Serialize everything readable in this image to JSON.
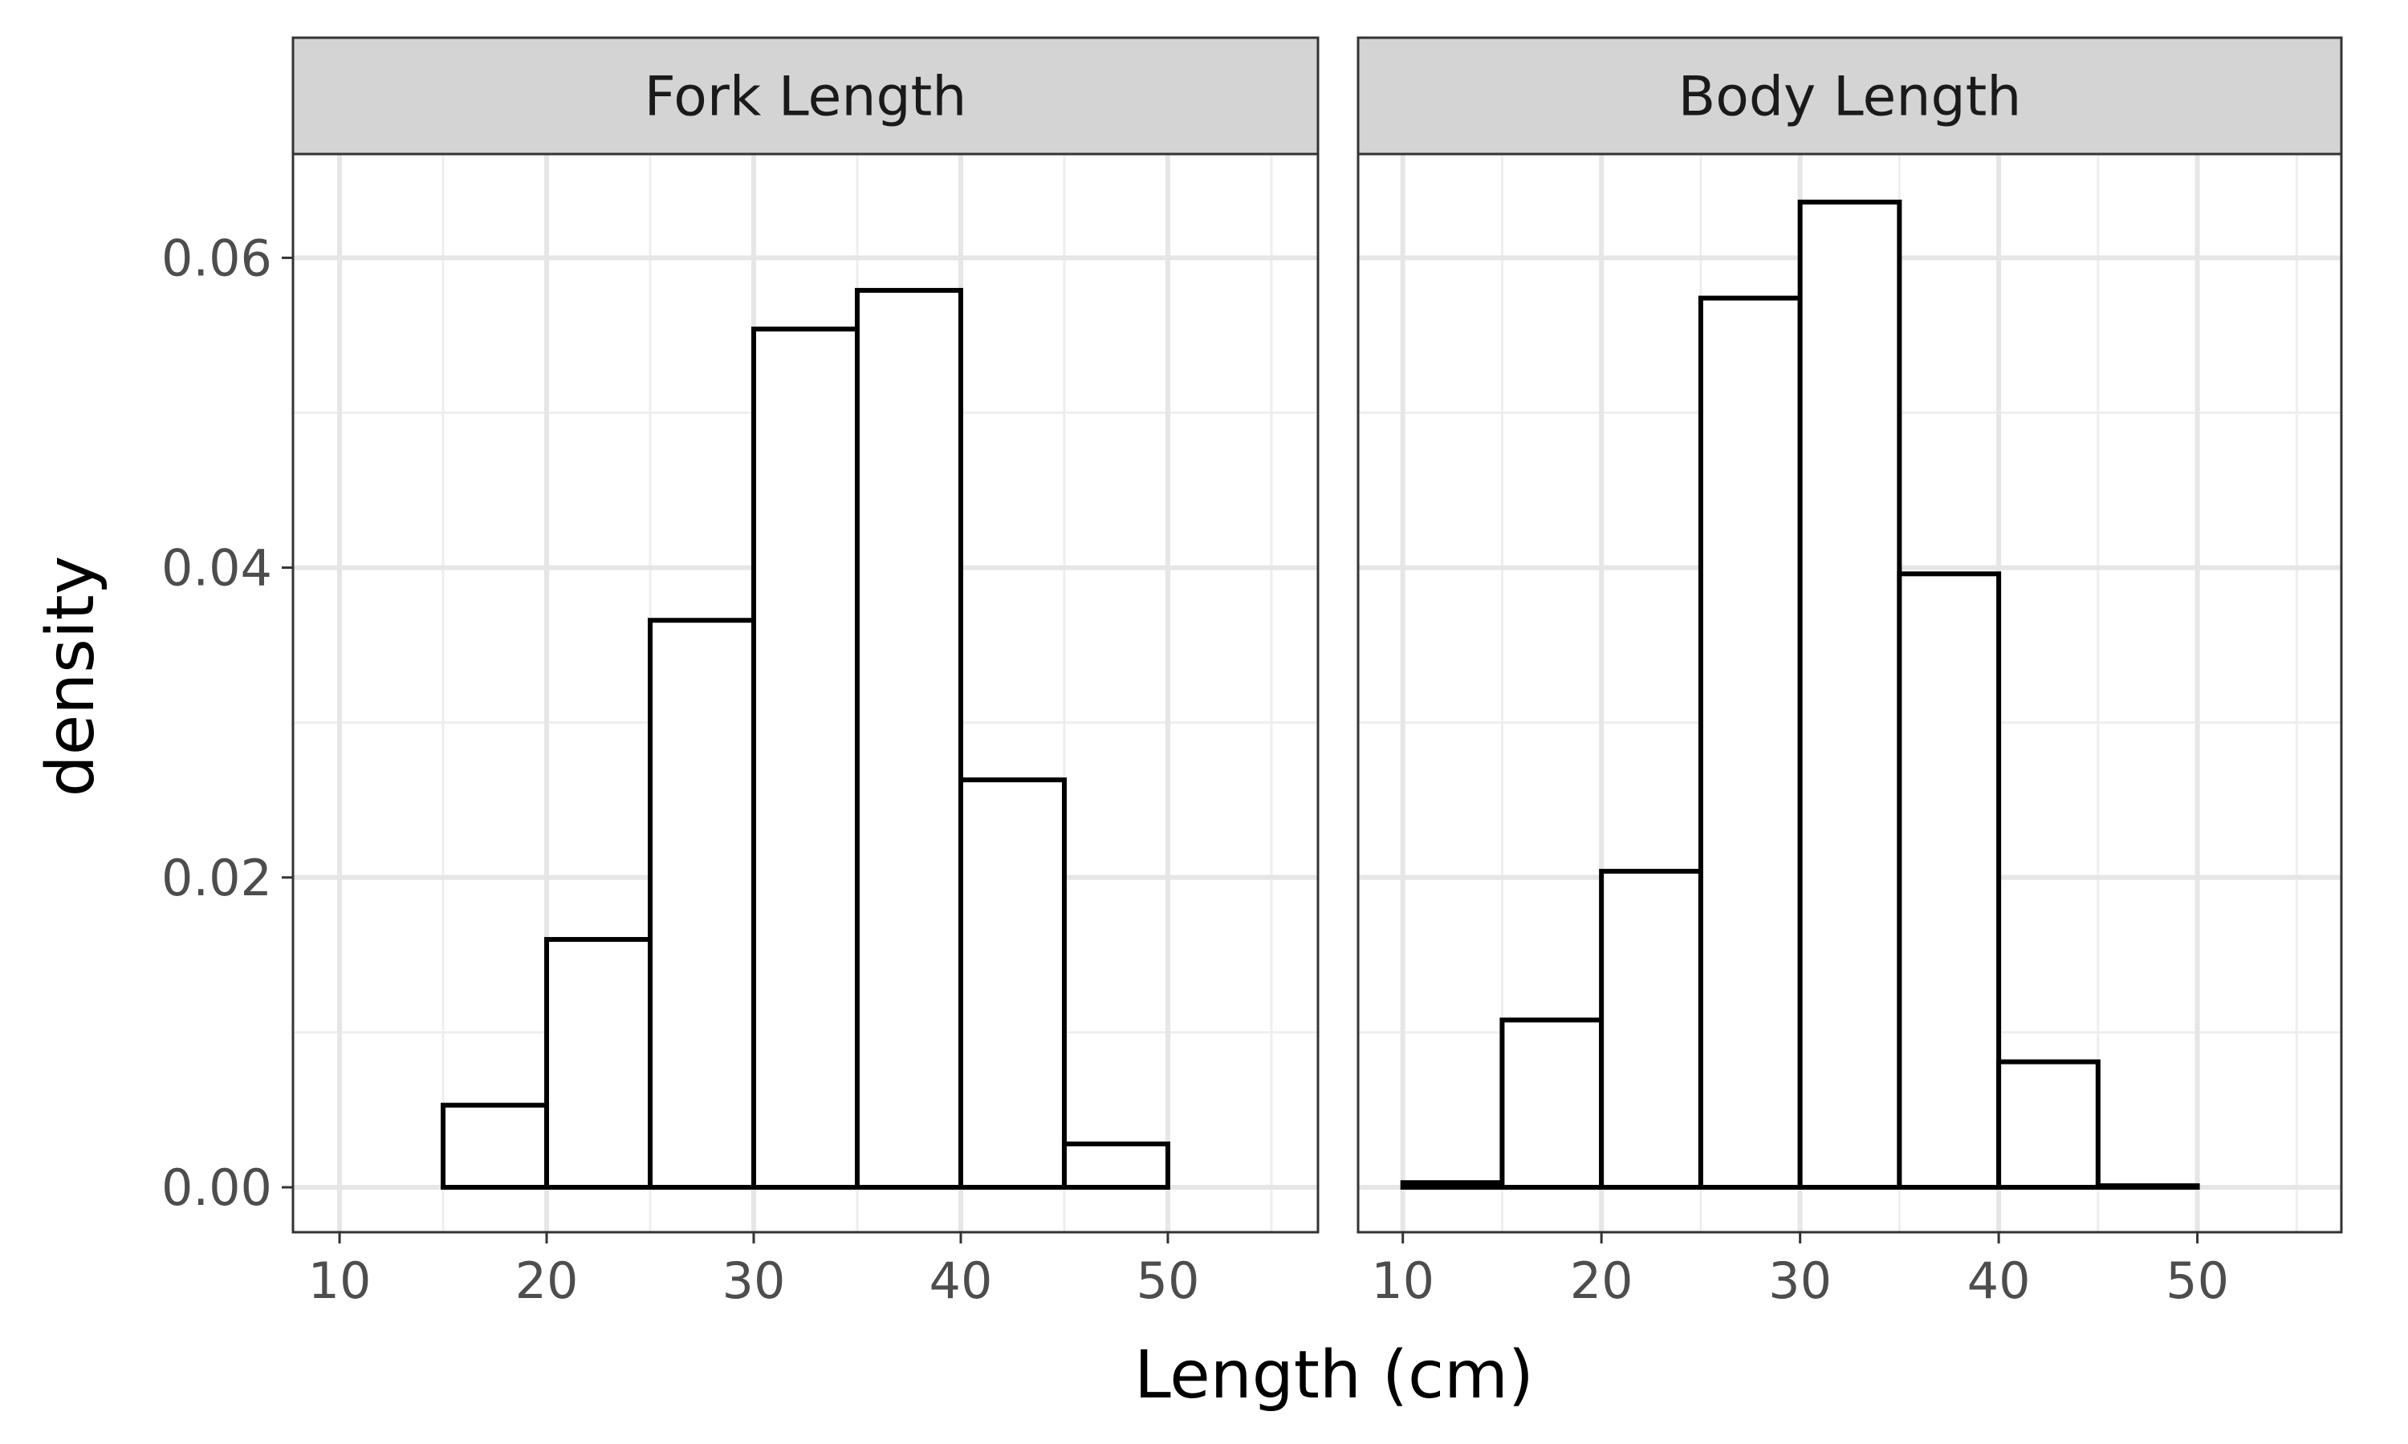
{
  "chart_data": {
    "type": "bar",
    "xlabel": "Length (cm)",
    "ylabel": "density",
    "xlim": [
      7.75,
      57.25
    ],
    "ylim": [
      -0.0029,
      0.0667
    ],
    "x_ticks": [
      10,
      20,
      30,
      40,
      50
    ],
    "x_tick_labels": [
      "10",
      "20",
      "30",
      "40",
      "50"
    ],
    "y_ticks": [
      0,
      0.02,
      0.04,
      0.06
    ],
    "y_tick_labels": [
      "0.00",
      "0.02",
      "0.04",
      "0.06"
    ],
    "grid": true,
    "bin_width": 5,
    "facets": [
      {
        "name": "Fork Length",
        "bins": [
          {
            "x0": 10,
            "x1": 15,
            "density": 0.0
          },
          {
            "x0": 15,
            "x1": 20,
            "density": 0.0053
          },
          {
            "x0": 20,
            "x1": 25,
            "density": 0.016
          },
          {
            "x0": 25,
            "x1": 30,
            "density": 0.0366
          },
          {
            "x0": 30,
            "x1": 35,
            "density": 0.0554
          },
          {
            "x0": 35,
            "x1": 40,
            "density": 0.0579
          },
          {
            "x0": 40,
            "x1": 45,
            "density": 0.0263
          },
          {
            "x0": 45,
            "x1": 50,
            "density": 0.0028
          },
          {
            "x0": 50,
            "x1": 55,
            "density": 0.0
          }
        ]
      },
      {
        "name": "Body Length",
        "bins": [
          {
            "x0": 10,
            "x1": 15,
            "density": 0.0003
          },
          {
            "x0": 15,
            "x1": 20,
            "density": 0.0108
          },
          {
            "x0": 20,
            "x1": 25,
            "density": 0.0204
          },
          {
            "x0": 25,
            "x1": 30,
            "density": 0.0574
          },
          {
            "x0": 30,
            "x1": 35,
            "density": 0.0636
          },
          {
            "x0": 35,
            "x1": 40,
            "density": 0.0396
          },
          {
            "x0": 40,
            "x1": 45,
            "density": 0.0081
          },
          {
            "x0": 45,
            "x1": 50,
            "density": 0.0001
          },
          {
            "x0": 50,
            "x1": 55,
            "density": 0.0
          }
        ]
      }
    ]
  }
}
